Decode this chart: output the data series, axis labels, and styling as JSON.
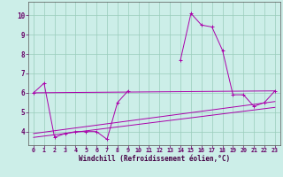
{
  "x": [
    0,
    1,
    2,
    3,
    4,
    5,
    6,
    7,
    8,
    9,
    10,
    11,
    12,
    13,
    14,
    15,
    16,
    17,
    18,
    19,
    20,
    21,
    22,
    23
  ],
  "line1": [
    6.0,
    6.5,
    3.7,
    3.9,
    4.0,
    4.0,
    4.0,
    3.6,
    5.5,
    6.1,
    null,
    null,
    null,
    null,
    7.7,
    10.1,
    9.5,
    9.4,
    8.2,
    5.9,
    5.9,
    5.3,
    5.5,
    6.1
  ],
  "line2_x": [
    0,
    23
  ],
  "line2_y": [
    6.0,
    6.1
  ],
  "line3_x": [
    0,
    23
  ],
  "line3_y": [
    3.9,
    5.55
  ],
  "line4_x": [
    0,
    23
  ],
  "line4_y": [
    3.7,
    5.25
  ],
  "line_color": "#aa00aa",
  "bg_color": "#cceee8",
  "grid_color": "#99ccbb",
  "xlabel": "Windchill (Refroidissement éolien,°C)",
  "ylim": [
    3.3,
    10.7
  ],
  "xlim": [
    -0.5,
    23.5
  ],
  "yticks": [
    4,
    5,
    6,
    7,
    8,
    9,
    10
  ],
  "xticks": [
    0,
    1,
    2,
    3,
    4,
    5,
    6,
    7,
    8,
    9,
    10,
    11,
    12,
    13,
    14,
    15,
    16,
    17,
    18,
    19,
    20,
    21,
    22,
    23
  ],
  "tick_color": "#660066",
  "label_color": "#440044"
}
